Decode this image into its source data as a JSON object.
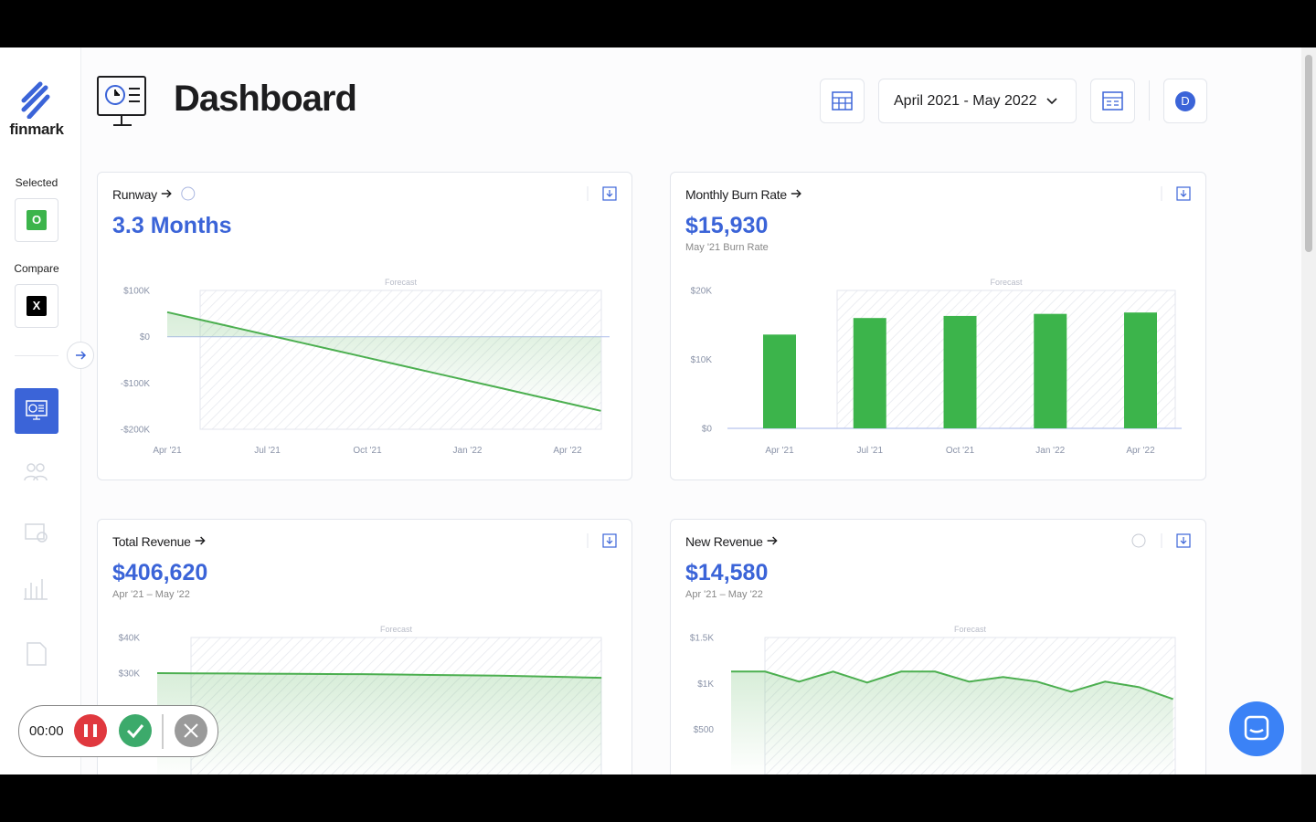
{
  "sidebar": {
    "logo_text": "finmark",
    "selected_label": "Selected",
    "selected_badge": "O",
    "compare_label": "Compare",
    "compare_badge": "X"
  },
  "header": {
    "title": "Dashboard",
    "date_range": "April 2021 - May 2022",
    "avatar": "D"
  },
  "recorder": {
    "timer": "00:00"
  },
  "cards": [
    {
      "title": "Runway",
      "value": "3.3 Months",
      "chart": {
        "type": "line",
        "forecast_label": "Forecast",
        "color": "#4caf50",
        "categories": [
          "Apr '21",
          null,
          null,
          "Jul '21",
          null,
          null,
          "Oct '21",
          null,
          null,
          "Jan '22",
          null,
          null,
          "Apr '22",
          null
        ],
        "values": [
          53000,
          36600,
          20200,
          3800,
          -12600,
          -29000,
          -45400,
          -61800,
          -78200,
          -94600,
          -111000,
          -127400,
          -143800,
          -160200
        ],
        "ylim": [
          -200000,
          100000
        ],
        "yticks": [
          {
            "value": 100000,
            "label": "$100K"
          },
          {
            "value": 0,
            "label": "$0"
          },
          {
            "value": -100000,
            "label": "-$100K"
          },
          {
            "value": -200000,
            "label": "-$200K"
          }
        ]
      }
    },
    {
      "title": "Monthly Burn Rate",
      "value": "$15,930",
      "subtitle": "May '21 Burn Rate",
      "chart": {
        "type": "bar",
        "forecast_label": "Forecast",
        "color": "#3cb44b",
        "categories": [
          "Apr '21",
          "Jul '21",
          "Oct '21",
          "Jan '22",
          "Apr '22"
        ],
        "values": [
          13600,
          16000,
          16300,
          16600,
          16800
        ],
        "ylim": [
          0,
          20000
        ],
        "yticks": [
          {
            "value": 0,
            "label": "$0"
          },
          {
            "value": 10000,
            "label": "$10K"
          },
          {
            "value": 20000,
            "label": "$20K"
          }
        ]
      }
    },
    {
      "title": "Total Revenue",
      "value": "$406,620",
      "subtitle": "Apr '21 – May '22",
      "chart": {
        "type": "line",
        "forecast_label": "Forecast",
        "color": "#4caf50",
        "categories": [
          null,
          null,
          null,
          null,
          null,
          null,
          null,
          null,
          null,
          null,
          null,
          null,
          null,
          null
        ],
        "values": [
          30000,
          29950,
          29900,
          29850,
          29800,
          29750,
          29700,
          29600,
          29500,
          29400,
          29300,
          29100,
          28900,
          28700
        ],
        "ylim": [
          0,
          40000
        ],
        "yticks": [
          {
            "value": 40000,
            "label": "$40K"
          },
          {
            "value": 30000,
            "label": "$30K"
          }
        ]
      }
    },
    {
      "title": "New Revenue",
      "value": "$14,580",
      "subtitle": "Apr '21 – May '22",
      "chart": {
        "type": "line",
        "forecast_label": "Forecast",
        "color": "#4caf50",
        "categories": [
          null,
          null,
          null,
          null,
          null,
          null,
          null,
          null,
          null,
          null,
          null,
          null,
          null,
          null
        ],
        "values": [
          1130,
          1130,
          1020,
          1130,
          1010,
          1130,
          1130,
          1020,
          1070,
          1020,
          910,
          1020,
          960,
          830
        ],
        "ylim": [
          0,
          1500
        ],
        "yticks": [
          {
            "value": 1500,
            "label": "$1.5K"
          },
          {
            "value": 1000,
            "label": "$1K"
          },
          {
            "value": 500,
            "label": "$500"
          }
        ]
      }
    }
  ]
}
